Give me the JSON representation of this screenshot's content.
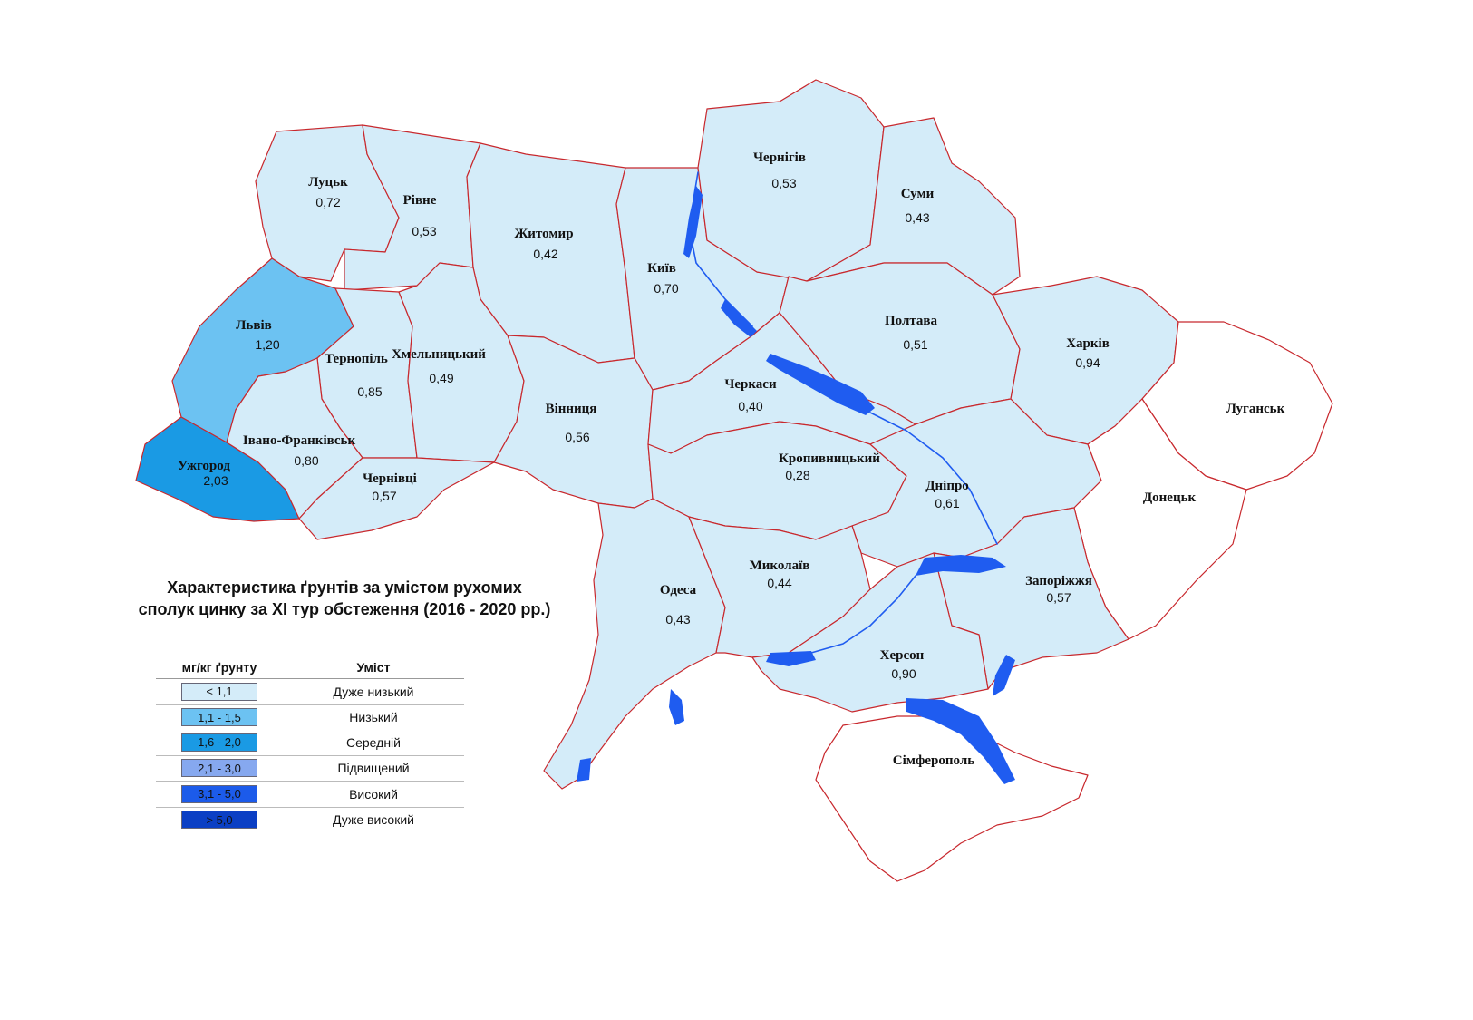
{
  "title": {
    "line1": "Характеристика ґрунтів за умістом рухомих",
    "line2": "сполук цинку за XI тур обстеження (2016 - 2020 рр.)"
  },
  "colors": {
    "very_low": "#d4ecf9",
    "low": "#6cc2f2",
    "medium": "#1a9ae4",
    "elevated": "#86a8ef",
    "high": "#1c5bea",
    "very_high": "#0b3fc4",
    "no_data": "#ffffff",
    "border": "#c8282d",
    "water": "#1f5cf0"
  },
  "legend": {
    "col_unit": "мг/кг ґрунту",
    "col_level": "Уміст",
    "rows": [
      {
        "range": "< 1,1",
        "label": "Дуже низький",
        "color": "#d4ecf9"
      },
      {
        "range": "1,1 - 1,5",
        "label": "Низький",
        "color": "#6cc2f2"
      },
      {
        "range": "1,6 - 2,0",
        "label": "Середній",
        "color": "#1a9ae4"
      },
      {
        "range": "2,1 - 3,0",
        "label": "Підвищений",
        "color": "#86a8ef"
      },
      {
        "range": "3,1 - 5,0",
        "label": "Високий",
        "color": "#1c5bea"
      },
      {
        "range": "> 5,0",
        "label": "Дуже високий",
        "color": "#0b3fc4"
      }
    ]
  },
  "regions": {
    "lutsk": {
      "name": "Луцьк",
      "value": "0,72"
    },
    "rivne": {
      "name": "Рівне",
      "value": "0,53"
    },
    "zhytomyr": {
      "name": "Житомир",
      "value": "0,42"
    },
    "kyiv": {
      "name": "Київ",
      "value": "0,70"
    },
    "chernihiv": {
      "name": "Чернігів",
      "value": "0,53"
    },
    "sumy": {
      "name": "Суми",
      "value": "0,43"
    },
    "lviv": {
      "name": "Львів",
      "value": "1,20"
    },
    "ternopil": {
      "name": "Тернопіль",
      "value": "0,85"
    },
    "khmelnytskyi": {
      "name": "Хмельницький",
      "value": "0,49"
    },
    "vinnytsia": {
      "name": "Вінниця",
      "value": "0,56"
    },
    "cherkasy": {
      "name": "Черкаси",
      "value": "0,40"
    },
    "poltava": {
      "name": "Полтава",
      "value": "0,51"
    },
    "kharkiv": {
      "name": "Харків",
      "value": "0,94"
    },
    "uzhhorod": {
      "name": "Ужгород",
      "value": "2,03"
    },
    "ivano_frankivsk": {
      "name": "Івано-Франківськ",
      "value": "0,80"
    },
    "chernivtsi": {
      "name": "Чернівці",
      "value": "0,57"
    },
    "kropyvnytskyi": {
      "name": "Кропивницький",
      "value": "0,28"
    },
    "dnipro": {
      "name": "Дніпро",
      "value": "0,61"
    },
    "luhansk": {
      "name": "Луганськ"
    },
    "donetsk": {
      "name": "Донецьк"
    },
    "odesa": {
      "name": "Одеса",
      "value": "0,43"
    },
    "mykolaiv": {
      "name": "Миколаїв",
      "value": "0,44"
    },
    "zaporizhzhia": {
      "name": "Запоріжжя",
      "value": "0,57"
    },
    "kherson": {
      "name": "Херсон",
      "value": "0,90"
    },
    "simferopol": {
      "name": "Сімферополь"
    }
  }
}
